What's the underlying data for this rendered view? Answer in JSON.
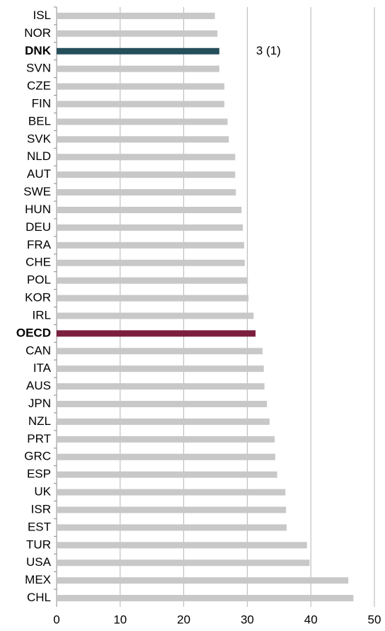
{
  "chart_data": {
    "type": "hbar",
    "categories": [
      "ISL",
      "NOR",
      "DNK",
      "SVN",
      "CZE",
      "FIN",
      "BEL",
      "SVK",
      "NLD",
      "AUT",
      "SWE",
      "HUN",
      "DEU",
      "FRA",
      "CHE",
      "POL",
      "KOR",
      "IRL",
      "OECD",
      "CAN",
      "ITA",
      "AUS",
      "JPN",
      "NZL",
      "PRT",
      "GRC",
      "ESP",
      "UK",
      "ISR",
      "EST",
      "TUR",
      "USA",
      "MEX",
      "CHL"
    ],
    "values": [
      24.9,
      25.3,
      25.6,
      25.6,
      26.4,
      26.4,
      26.9,
      27.1,
      28.1,
      28.1,
      28.2,
      29.1,
      29.3,
      29.5,
      29.6,
      30.1,
      30.2,
      31.0,
      31.3,
      32.4,
      32.6,
      32.7,
      33.1,
      33.5,
      34.3,
      34.4,
      34.7,
      36.0,
      36.1,
      36.2,
      39.4,
      39.8,
      45.9,
      46.7
    ],
    "color": "#c8c8c8",
    "colors": [
      "#c8c8c8",
      "#c8c8c8",
      "#264f5c",
      "#c8c8c8",
      "#c8c8c8",
      "#c8c8c8",
      "#c8c8c8",
      "#c8c8c8",
      "#c8c8c8",
      "#c8c8c8",
      "#c8c8c8",
      "#c8c8c8",
      "#c8c8c8",
      "#c8c8c8",
      "#c8c8c8",
      "#c8c8c8",
      "#c8c8c8",
      "#c8c8c8",
      "#7b1f3f",
      "#c8c8c8",
      "#c8c8c8",
      "#c8c8c8",
      "#c8c8c8",
      "#c8c8c8",
      "#c8c8c8",
      "#c8c8c8",
      "#c8c8c8",
      "#c8c8c8",
      "#c8c8c8",
      "#c8c8c8",
      "#c8c8c8",
      "#c8c8c8",
      "#c8c8c8",
      "#c8c8c8"
    ],
    "annotations": [
      {
        "text": "3 (1)",
        "category": "DNK"
      }
    ],
    "xlim": [
      0,
      50
    ],
    "xticks": [
      0,
      10,
      20,
      30,
      40,
      50
    ],
    "grid": true
  }
}
